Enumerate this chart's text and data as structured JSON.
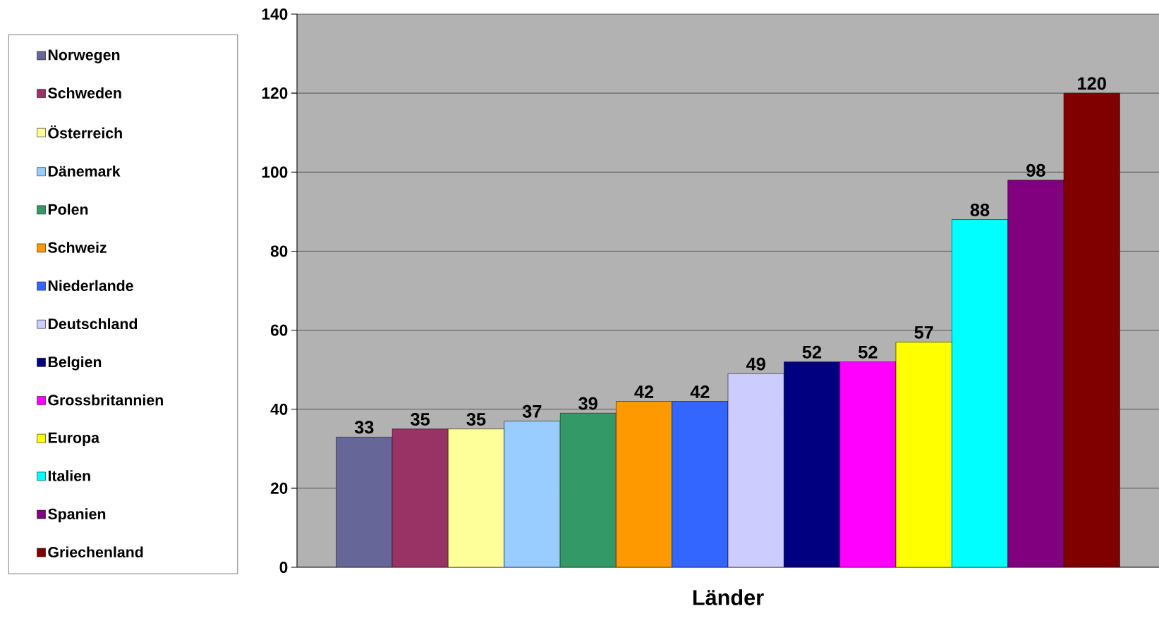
{
  "chart_data": {
    "type": "bar",
    "xlabel": "Länder",
    "categories": [
      null
    ],
    "series": [
      {
        "name": "Norwegen",
        "color": "#666699",
        "values": [
          33
        ]
      },
      {
        "name": "Schweden",
        "color": "#993366",
        "values": [
          35
        ]
      },
      {
        "name": "Österreich",
        "color": "#ffff99",
        "values": [
          35
        ]
      },
      {
        "name": "Dänemark",
        "color": "#99ccff",
        "values": [
          37
        ]
      },
      {
        "name": "Polen",
        "color": "#339966",
        "values": [
          39
        ]
      },
      {
        "name": "Schweiz",
        "color": "#ff9900",
        "values": [
          42
        ]
      },
      {
        "name": "Niederlande",
        "color": "#3366ff",
        "values": [
          42
        ]
      },
      {
        "name": "Deutschland",
        "color": "#ccccff",
        "values": [
          49
        ]
      },
      {
        "name": "Belgien",
        "color": "#000080",
        "values": [
          52
        ]
      },
      {
        "name": "Grossbritannien",
        "color": "#ff00ff",
        "values": [
          52
        ]
      },
      {
        "name": "Europa",
        "color": "#ffff00",
        "values": [
          57
        ]
      },
      {
        "name": "Italien",
        "color": "#00ffff",
        "values": [
          88
        ]
      },
      {
        "name": "Spanien",
        "color": "#800080",
        "values": [
          98
        ]
      },
      {
        "name": "Griechenland",
        "color": "#800000",
        "values": [
          120
        ]
      }
    ],
    "ylim": [
      0,
      140
    ],
    "yticks": [
      0,
      20,
      40,
      60,
      80,
      100,
      120,
      140
    ],
    "grid": "y",
    "legend": "left",
    "tick_labels": "y",
    "data_labels": true
  }
}
